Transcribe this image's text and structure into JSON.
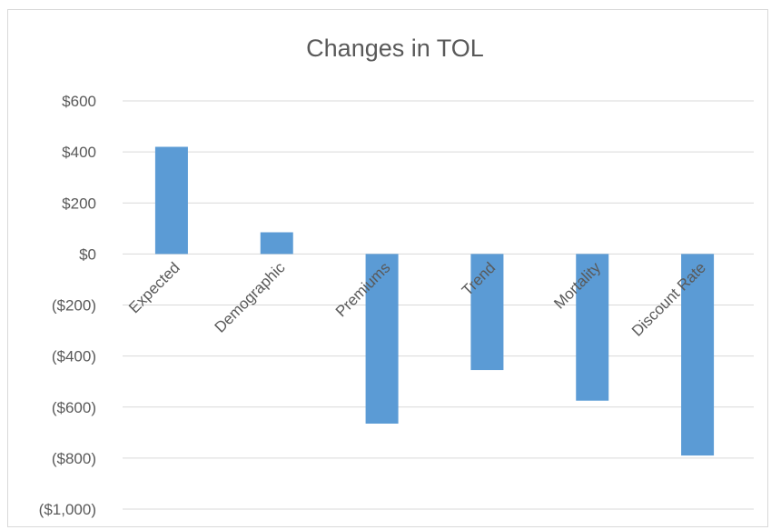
{
  "chart_data": {
    "type": "bar",
    "title": "Changes in TOL",
    "xlabel": "",
    "ylabel": "",
    "categories": [
      "Expected",
      "Demographic",
      "Premiums",
      "Trend",
      "Mortality",
      "Discount Rate"
    ],
    "values": [
      420,
      85,
      -665,
      -455,
      -575,
      -790
    ],
    "ylim": [
      -1000,
      600
    ],
    "yticks": [
      600,
      400,
      200,
      0,
      -200,
      -400,
      -600,
      -800,
      -1000
    ],
    "ytick_labels": [
      "$600",
      "$400",
      "$200",
      "$0",
      "($200)",
      "($400)",
      "($600)",
      "($800)",
      "($1,000)"
    ],
    "grid": true,
    "legend": "none",
    "colors": {
      "bar": "#5b9bd5",
      "grid": "#d9d9d9",
      "text": "#595959"
    }
  }
}
